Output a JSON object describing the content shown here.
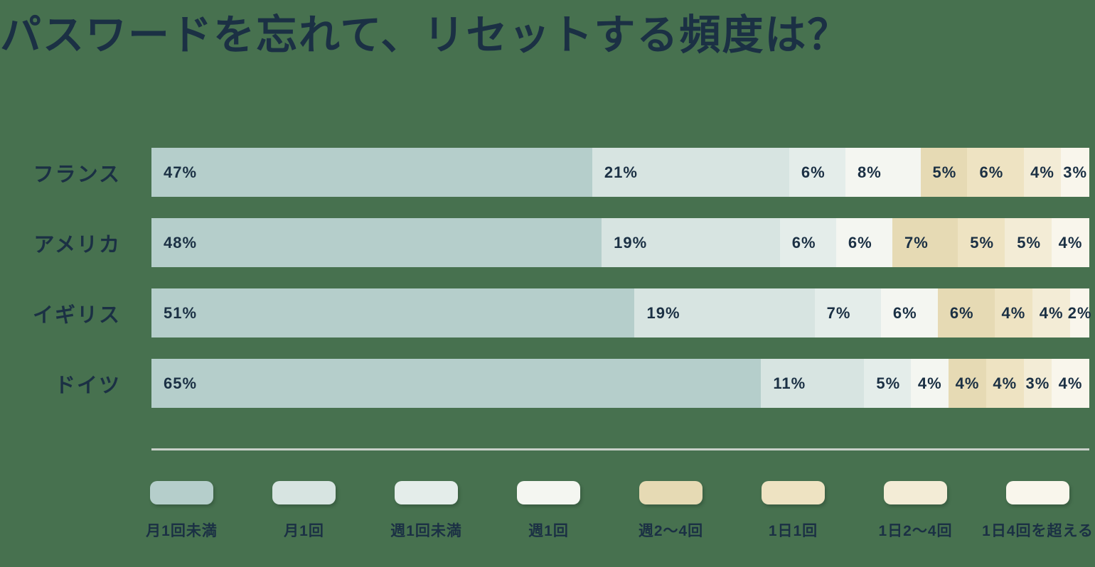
{
  "title": "パスワードを忘れて、リセットする頻度は？",
  "colors": {
    "background": "#47714F",
    "text": "#1B3044",
    "divider": "#C9D0C9"
  },
  "chart_data": {
    "type": "bar",
    "variant": "horizontal-stacked",
    "title": "パスワードを忘れて、リセットする頻度は？",
    "unit": "%",
    "legend_position": "bottom",
    "grid": false,
    "xlim": [
      0,
      100
    ],
    "categories": [
      "フランス",
      "アメリカ",
      "イギリス",
      "ドイツ"
    ],
    "series": [
      {
        "name": "月1回未満",
        "color": "#B5CECB",
        "dotted": false,
        "values": [
          47,
          48,
          51,
          65
        ]
      },
      {
        "name": "月1回",
        "color": "#D7E4E1",
        "dotted": false,
        "values": [
          21,
          19,
          19,
          11
        ]
      },
      {
        "name": "週1回未満",
        "color": "#E4EDEA",
        "dotted": false,
        "values": [
          6,
          6,
          7,
          5
        ]
      },
      {
        "name": "週1回",
        "color": "#F4F6F1",
        "dotted": true,
        "values": [
          8,
          6,
          6,
          4
        ]
      },
      {
        "name": "週2〜4回",
        "color": "#E6DAB4",
        "dotted": false,
        "values": [
          5,
          7,
          6,
          4
        ]
      },
      {
        "name": "1日1回",
        "color": "#EEE3C2",
        "dotted": false,
        "values": [
          6,
          5,
          4,
          4
        ]
      },
      {
        "name": "1日2〜4回",
        "color": "#F3ECD6",
        "dotted": false,
        "values": [
          4,
          5,
          4,
          3
        ]
      },
      {
        "name": "1日4回を超える",
        "color": "#F9F6EC",
        "dotted": true,
        "values": [
          3,
          4,
          2,
          4
        ]
      }
    ]
  },
  "layout_values": {
    "row_tops": [
      208,
      307,
      406,
      505
    ],
    "legend_lefts": [
      211,
      383,
      555,
      727,
      899,
      1071,
      1243,
      1415
    ]
  }
}
